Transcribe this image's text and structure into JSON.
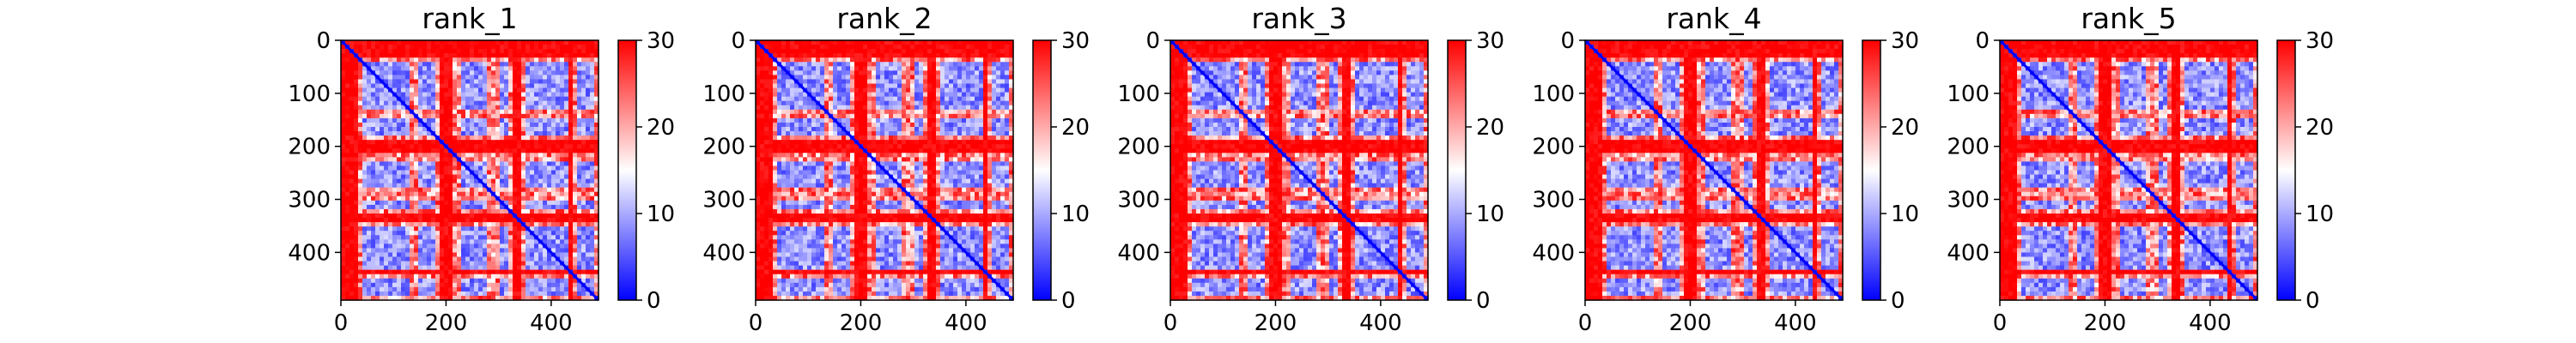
{
  "figure": {
    "colormap": [
      "#0000ff",
      "#ffffff",
      "#ff0000"
    ],
    "axis_color": "#000000"
  },
  "chart_data": [
    {
      "type": "heatmap",
      "title": "rank_1",
      "xlabel": "",
      "ylabel": "",
      "xlim": [
        0,
        490
      ],
      "ylim": [
        490,
        0
      ],
      "xticks": [
        0,
        200,
        400
      ],
      "yticks": [
        0,
        100,
        200,
        300,
        400
      ],
      "colorbar": {
        "vmin": 0,
        "vmax": 30,
        "ticks": [
          0,
          10,
          20,
          30
        ]
      },
      "n_residues": 490,
      "low_blocks": [
        [
          40,
          130
        ],
        [
          150,
          180
        ],
        [
          225,
          275
        ],
        [
          300,
          320
        ],
        [
          350,
          430
        ],
        [
          450,
          480
        ]
      ],
      "high_bands": [
        [
          0,
          30
        ],
        [
          190,
          210
        ],
        [
          325,
          340
        ],
        [
          435,
          445
        ]
      ]
    },
    {
      "type": "heatmap",
      "title": "rank_2",
      "xlabel": "",
      "ylabel": "",
      "xlim": [
        0,
        490
      ],
      "ylim": [
        490,
        0
      ],
      "xticks": [
        0,
        200,
        400
      ],
      "yticks": [
        0,
        100,
        200,
        300,
        400
      ],
      "colorbar": {
        "vmin": 0,
        "vmax": 30,
        "ticks": [
          0,
          10,
          20,
          30
        ]
      },
      "n_residues": 490,
      "low_blocks": [
        [
          40,
          130
        ],
        [
          150,
          180
        ],
        [
          225,
          275
        ],
        [
          300,
          320
        ],
        [
          350,
          430
        ],
        [
          450,
          480
        ]
      ],
      "high_bands": [
        [
          0,
          35
        ],
        [
          190,
          210
        ],
        [
          325,
          340
        ],
        [
          435,
          445
        ]
      ]
    },
    {
      "type": "heatmap",
      "title": "rank_3",
      "xlabel": "",
      "ylabel": "",
      "xlim": [
        0,
        490
      ],
      "ylim": [
        490,
        0
      ],
      "xticks": [
        0,
        200,
        400
      ],
      "yticks": [
        0,
        100,
        200,
        300,
        400
      ],
      "colorbar": {
        "vmin": 0,
        "vmax": 30,
        "ticks": [
          0,
          10,
          20,
          30
        ]
      },
      "n_residues": 490,
      "low_blocks": [
        [
          40,
          130
        ],
        [
          150,
          180
        ],
        [
          225,
          275
        ],
        [
          300,
          320
        ],
        [
          350,
          430
        ],
        [
          450,
          480
        ]
      ],
      "high_bands": [
        [
          0,
          35
        ],
        [
          190,
          210
        ],
        [
          325,
          340
        ],
        [
          435,
          445
        ]
      ]
    },
    {
      "type": "heatmap",
      "title": "rank_4",
      "xlabel": "",
      "ylabel": "",
      "xlim": [
        0,
        490
      ],
      "ylim": [
        490,
        0
      ],
      "xticks": [
        0,
        200,
        400
      ],
      "yticks": [
        0,
        100,
        200,
        300,
        400
      ],
      "colorbar": {
        "vmin": 0,
        "vmax": 30,
        "ticks": [
          0,
          10,
          20,
          30
        ]
      },
      "n_residues": 490,
      "low_blocks": [
        [
          40,
          130
        ],
        [
          150,
          180
        ],
        [
          225,
          275
        ],
        [
          300,
          320
        ],
        [
          350,
          430
        ],
        [
          450,
          480
        ]
      ],
      "high_bands": [
        [
          0,
          35
        ],
        [
          190,
          210
        ],
        [
          325,
          340
        ],
        [
          435,
          445
        ]
      ]
    },
    {
      "type": "heatmap",
      "title": "rank_5",
      "xlabel": "",
      "ylabel": "",
      "xlim": [
        0,
        490
      ],
      "ylim": [
        490,
        0
      ],
      "xticks": [
        0,
        200,
        400
      ],
      "yticks": [
        0,
        100,
        200,
        300,
        400
      ],
      "colorbar": {
        "vmin": 0,
        "vmax": 30,
        "ticks": [
          0,
          10,
          20,
          30
        ]
      },
      "n_residues": 490,
      "low_blocks": [
        [
          40,
          130
        ],
        [
          150,
          180
        ],
        [
          225,
          275
        ],
        [
          300,
          320
        ],
        [
          350,
          430
        ],
        [
          450,
          480
        ]
      ],
      "high_bands": [
        [
          0,
          30
        ],
        [
          190,
          210
        ],
        [
          325,
          340
        ],
        [
          435,
          445
        ]
      ]
    }
  ]
}
